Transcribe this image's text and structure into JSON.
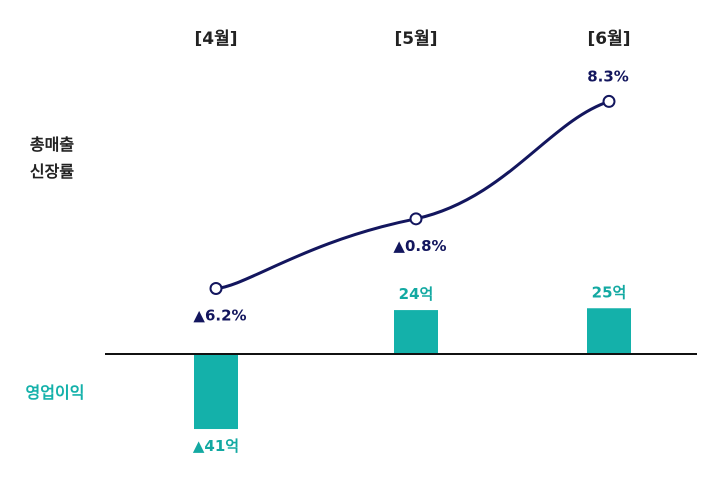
{
  "colors": {
    "line": "#13165e",
    "bar": "#14b1aa",
    "bar_label": "#13a9a2",
    "text": "#222222",
    "axis": "#111111"
  },
  "labels": {
    "row_line": [
      "총매출",
      "신장률"
    ],
    "row_bar": "영업이익"
  },
  "chart_data": {
    "type": "bar",
    "categories": [
      "[4월]",
      "[5월]",
      "[6월]"
    ],
    "line_series": {
      "name": "총매출 신장률",
      "values": [
        -6.2,
        -0.8,
        8.3
      ],
      "labels": [
        "▲6.2%",
        "▲0.8%",
        "8.3%"
      ]
    },
    "bar_series": {
      "name": "영업이익",
      "values": [
        -41,
        24,
        25
      ],
      "labels": [
        "▲41억",
        "24억",
        "25억"
      ]
    }
  }
}
